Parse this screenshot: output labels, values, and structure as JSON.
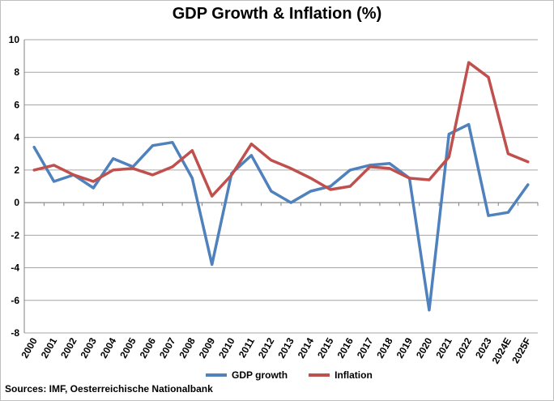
{
  "chart_data": {
    "type": "line",
    "title": "GDP Growth & Inflation (%)",
    "categories": [
      "2000",
      "2001",
      "2002",
      "2003",
      "2004",
      "2005",
      "2006",
      "2007",
      "2008",
      "2009",
      "2010",
      "2011",
      "2012",
      "2013",
      "2014",
      "2015",
      "2016",
      "2017",
      "2018",
      "2019",
      "2020",
      "2021",
      "2022",
      "2023",
      "2024E",
      "2025F"
    ],
    "series": [
      {
        "name": "GDP growth",
        "color": "#4f81bd",
        "values": [
          3.4,
          1.3,
          1.7,
          0.9,
          2.7,
          2.2,
          3.5,
          3.7,
          1.5,
          -3.8,
          1.8,
          2.9,
          0.7,
          0.0,
          0.7,
          1.0,
          2.0,
          2.3,
          2.4,
          1.5,
          -6.6,
          4.2,
          4.8,
          -0.8,
          -0.6,
          1.1
        ]
      },
      {
        "name": "Inflation",
        "color": "#c0504d",
        "values": [
          2.0,
          2.3,
          1.7,
          1.3,
          2.0,
          2.1,
          1.7,
          2.2,
          3.2,
          0.4,
          1.7,
          3.6,
          2.6,
          2.1,
          1.5,
          0.8,
          1.0,
          2.2,
          2.1,
          1.5,
          1.4,
          2.8,
          8.6,
          7.7,
          3.0,
          2.5
        ]
      }
    ],
    "ylim": [
      -8,
      10
    ],
    "yticks": [
      "-8",
      "-6",
      "-4",
      "-2",
      "0",
      "2",
      "4",
      "6",
      "8",
      "10"
    ],
    "grid": true,
    "legend": "bottom"
  },
  "source": "Sources: IMF, Oesterreichische Nationalbank"
}
